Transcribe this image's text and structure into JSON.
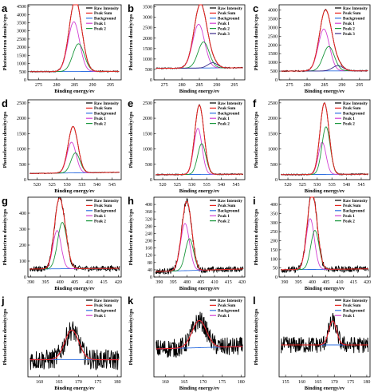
{
  "colors": {
    "raw": "#000000",
    "sum": "#e8231f",
    "background": "#2f6fe0",
    "peak1": "#d23fd2",
    "peak2": "#18963a",
    "peak3": "#3b2b8c"
  },
  "chart_data": [
    {
      "panel": "a",
      "type": "line",
      "xlabel": "Binding energy/ev",
      "ylabel": "Photoelectron density/cps",
      "xlim": [
        272,
        298
      ],
      "xticks": [
        275,
        280,
        285,
        290,
        295
      ],
      "ylim": [
        0,
        4600
      ],
      "yticks": [
        0,
        500,
        1000,
        1500,
        2000,
        2500,
        3000,
        3500,
        4000,
        4500
      ],
      "legend": [
        "Raw Intensity",
        "Peak Sum",
        "Background",
        "Peak 1",
        "Peak 2"
      ],
      "noise": "low",
      "background": {
        "left": 500,
        "right": 520
      },
      "peaks": [
        {
          "name": "Peak 1",
          "center": 284.8,
          "height": 3050,
          "width": 1.6
        },
        {
          "name": "Peak 2",
          "center": 286.1,
          "height": 1700,
          "width": 1.6
        }
      ]
    },
    {
      "panel": "b",
      "type": "line",
      "xlabel": "Binding energy/ev",
      "ylabel": "Photoelectron density/cps",
      "xlim": [
        272,
        298
      ],
      "xticks": [
        275,
        280,
        285,
        290,
        295
      ],
      "ylim": [
        0,
        3600
      ],
      "yticks": [
        0,
        500,
        1000,
        1500,
        2000,
        2500,
        3000,
        3500
      ],
      "legend": [
        "Raw Intensity",
        "Peak Sum",
        "Background",
        "Peak 1",
        "Peak 2",
        "Peak 3"
      ],
      "noise": "low",
      "background": {
        "left": 550,
        "right": 580
      },
      "peaks": [
        {
          "name": "Peak 1",
          "center": 284.8,
          "height": 2100,
          "width": 1.7
        },
        {
          "name": "Peak 2",
          "center": 286.2,
          "height": 1250,
          "width": 1.6
        },
        {
          "name": "Peak 3",
          "center": 288.8,
          "height": 250,
          "width": 1.4
        }
      ]
    },
    {
      "panel": "c",
      "type": "line",
      "xlabel": "Binding energy/ev",
      "ylabel": "Photoelectron density/cps",
      "xlim": [
        272,
        298
      ],
      "xticks": [
        275,
        280,
        285,
        290,
        295
      ],
      "ylim": [
        0,
        4300
      ],
      "yticks": [
        0,
        500,
        1000,
        1500,
        2000,
        2500,
        3000,
        3500,
        4000
      ],
      "legend": [
        "Raw Intensity",
        "Peak Sum",
        "Background",
        "Peak 1",
        "Peak 2",
        "Peak 3"
      ],
      "noise": "low",
      "background": {
        "left": 500,
        "right": 520
      },
      "peaks": [
        {
          "name": "Peak 1",
          "center": 284.8,
          "height": 2400,
          "width": 1.6
        },
        {
          "name": "Peak 2",
          "center": 286.2,
          "height": 1400,
          "width": 1.6
        },
        {
          "name": "Peak 3",
          "center": 288.8,
          "height": 300,
          "width": 1.5
        }
      ]
    },
    {
      "panel": "d",
      "type": "line",
      "xlabel": "Binding energy/ev",
      "ylabel": "Photoelectron density/cps",
      "xlim": [
        517,
        548
      ],
      "xticks": [
        520,
        525,
        530,
        535,
        540,
        545
      ],
      "ylim": [
        0,
        2600
      ],
      "yticks": [
        0,
        500,
        1000,
        1500,
        2000,
        2500
      ],
      "legend": [
        "Raw Intensity",
        "Peak Sum",
        "Background",
        "Peak 1",
        "Peak 2"
      ],
      "noise": "low",
      "background": {
        "left": 200,
        "right": 240
      },
      "peaks": [
        {
          "name": "Peak 1",
          "center": 531.5,
          "height": 1000,
          "width": 1.5
        },
        {
          "name": "Peak 2",
          "center": 532.8,
          "height": 650,
          "width": 1.5
        }
      ]
    },
    {
      "panel": "e",
      "type": "line",
      "xlabel": "Binding energy/ev",
      "ylabel": "Photoelectron density/cps",
      "xlim": [
        517,
        548
      ],
      "xticks": [
        520,
        525,
        530,
        535,
        540,
        545
      ],
      "ylim": [
        0,
        2600
      ],
      "yticks": [
        0,
        500,
        1000,
        1500,
        2000,
        2500
      ],
      "legend": [
        "Raw Intensity",
        "Peak Sum",
        "Background",
        "Peak 1",
        "Peak 2"
      ],
      "noise": "low",
      "background": {
        "left": 160,
        "right": 180
      },
      "peaks": [
        {
          "name": "Peak 1",
          "center": 532.0,
          "height": 1500,
          "width": 1.4
        },
        {
          "name": "Peak 2",
          "center": 533.3,
          "height": 1000,
          "width": 1.4
        }
      ]
    },
    {
      "panel": "f",
      "type": "line",
      "xlabel": "Binding energy/ev",
      "ylabel": "Photoelectron density/cps",
      "xlim": [
        517,
        548
      ],
      "xticks": [
        520,
        525,
        530,
        535,
        540,
        545
      ],
      "ylim": [
        0,
        2600
      ],
      "yticks": [
        0,
        500,
        1000,
        1500,
        2000,
        2500
      ],
      "legend": [
        "Raw Intensity",
        "Peak Sum",
        "Background",
        "Peak 1",
        "Peak 2"
      ],
      "noise": "low",
      "background": {
        "left": 160,
        "right": 180
      },
      "peaks": [
        {
          "name": "Peak 1",
          "center": 531.7,
          "height": 1050,
          "width": 1.3
        },
        {
          "name": "Peak 2",
          "center": 533.0,
          "height": 1550,
          "width": 1.4
        }
      ]
    },
    {
      "panel": "g",
      "type": "line",
      "xlabel": "Binding energy/ev",
      "ylabel": "Photoelectron density/cps",
      "xlim": [
        389,
        421
      ],
      "xticks": [
        390,
        395,
        400,
        405,
        410,
        415,
        420
      ],
      "ylim": [
        0,
        500
      ],
      "yticks": [
        0,
        100,
        200,
        300,
        400
      ],
      "legend": [
        "Raw Intensity",
        "Peak Sum",
        "Background",
        "Peak 1",
        "Peak 2"
      ],
      "noise": "medium",
      "background": {
        "left": 50,
        "right": 55
      },
      "peaks": [
        {
          "name": "Peak 1",
          "center": 399.0,
          "height": 240,
          "width": 1.4
        },
        {
          "name": "Peak 2",
          "center": 400.8,
          "height": 290,
          "width": 1.6
        }
      ]
    },
    {
      "panel": "h",
      "type": "line",
      "xlabel": "Binding energy/ev",
      "ylabel": "Photoelectron density/cps",
      "xlim": [
        388,
        421
      ],
      "xticks": [
        390,
        395,
        400,
        405,
        410,
        415,
        420
      ],
      "ylim": [
        0,
        440
      ],
      "yticks": [
        0,
        40,
        80,
        120,
        160,
        200,
        240,
        280,
        320,
        360,
        400
      ],
      "legend": [
        "Raw Intensity",
        "Peak Sum",
        "Background",
        "Peak 1",
        "Peak 2"
      ],
      "noise": "medium",
      "background": {
        "left": 30,
        "right": 45
      },
      "peaks": [
        {
          "name": "Peak 1",
          "center": 399.3,
          "height": 260,
          "width": 1.6
        },
        {
          "name": "Peak 2",
          "center": 400.9,
          "height": 175,
          "width": 1.5
        }
      ]
    },
    {
      "panel": "i",
      "type": "line",
      "xlabel": "Binding energy/ev",
      "ylabel": "Photoelectron density/cps",
      "xlim": [
        388,
        421
      ],
      "xticks": [
        390,
        395,
        400,
        405,
        410,
        415,
        420
      ],
      "ylim": [
        0,
        440
      ],
      "yticks": [
        0,
        50,
        100,
        150,
        200,
        250,
        300,
        350,
        400
      ],
      "legend": [
        "Raw Intensity",
        "Peak Sum",
        "Background",
        "Peak 1",
        "Peak 2"
      ],
      "noise": "medium",
      "background": {
        "left": 40,
        "right": 45
      },
      "peaks": [
        {
          "name": "Peak 1",
          "center": 399.3,
          "height": 280,
          "width": 1.5
        },
        {
          "name": "Peak 2",
          "center": 401.0,
          "height": 215,
          "width": 1.5
        }
      ]
    },
    {
      "panel": "j",
      "type": "line",
      "xlabel": "Binding energy/ev",
      "ylabel": "Photoelectron density/cps",
      "xlim": [
        157,
        181
      ],
      "xticks": [
        160,
        165,
        170,
        175,
        180
      ],
      "ylim": [
        0,
        140
      ],
      "yticks": [],
      "legend": [
        "Raw Intensity",
        "Peak Sum",
        "Background",
        "Peak 1"
      ],
      "noise": "high",
      "background": {
        "left": 30,
        "right": 30
      },
      "peaks": [
        {
          "name": "Peak 1",
          "center": 168.3,
          "height": 52,
          "width": 1.8
        }
      ]
    },
    {
      "panel": "k",
      "type": "line",
      "xlabel": "Binding energy/ev",
      "ylabel": "Photoelectron density/cps",
      "xlim": [
        157,
        181
      ],
      "xticks": [
        160,
        165,
        170,
        175,
        180
      ],
      "ylim": [
        0,
        100
      ],
      "yticks": [],
      "legend": [
        "Raw Intensity",
        "Peak Sum",
        "Background",
        "Peak 1"
      ],
      "noise": "high",
      "background": {
        "left": 35,
        "right": 38
      },
      "peaks": [
        {
          "name": "Peak 1",
          "center": 169.0,
          "height": 34,
          "width": 1.9
        }
      ]
    },
    {
      "panel": "l",
      "type": "line",
      "xlabel": "Binding energy/ev",
      "ylabel": "Photoelectron density/cps",
      "xlim": [
        153,
        181
      ],
      "xticks": [
        155,
        160,
        165,
        170,
        175,
        180
      ],
      "ylim": [
        0,
        100
      ],
      "yticks": [],
      "legend": [
        "Raw Intensity",
        "Peak Sum",
        "Background",
        "Peak 1"
      ],
      "noise": "high",
      "background": {
        "left": 40,
        "right": 40
      },
      "peaks": [
        {
          "name": "Peak 1",
          "center": 169.5,
          "height": 30,
          "width": 1.2
        }
      ]
    }
  ]
}
